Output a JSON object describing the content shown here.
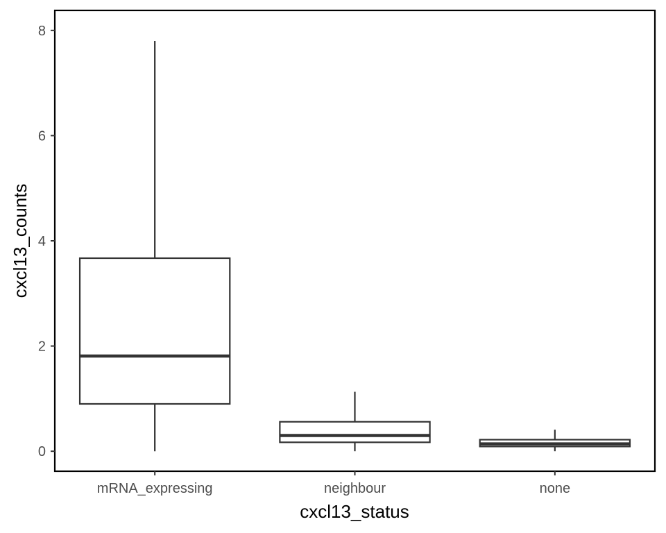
{
  "chart_data": {
    "type": "boxplot",
    "title": "",
    "xlabel": "cxcl13_status",
    "ylabel": "cxcl13_counts",
    "ylim": [
      -0.38,
      8.38
    ],
    "yticks": [
      0,
      2,
      4,
      6,
      8
    ],
    "grid": false,
    "categories": [
      "mRNA_expressing",
      "neighbour",
      "none"
    ],
    "boxes": [
      {
        "category": "mRNA_expressing",
        "min": 0,
        "q1": 0.9,
        "median": 1.81,
        "q3": 3.67,
        "max": 7.8
      },
      {
        "category": "neighbour",
        "min": 0,
        "q1": 0.17,
        "median": 0.3,
        "q3": 0.56,
        "max": 1.13
      },
      {
        "category": "none",
        "min": 0,
        "q1": 0.09,
        "median": 0.14,
        "q3": 0.22,
        "max": 0.41
      }
    ],
    "colors": {
      "box_stroke": "#333333",
      "box_fill": "#ffffff",
      "panel_border": "#000000",
      "tick_label": "#4d4d4d"
    }
  }
}
